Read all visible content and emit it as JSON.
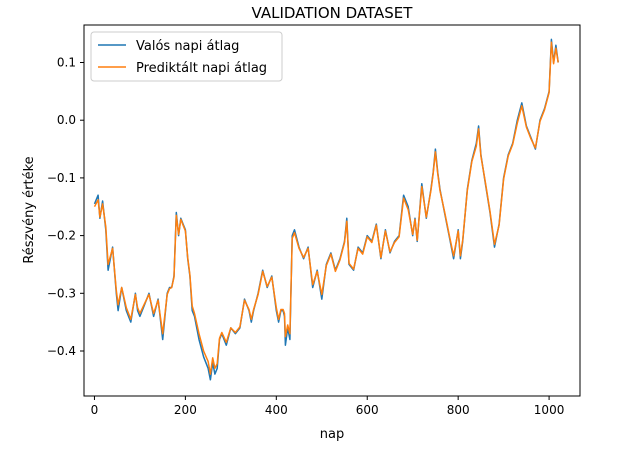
{
  "chart_data": {
    "type": "line",
    "title": "VALIDATION DATASET",
    "xlabel": "nap",
    "ylabel": "Részvény értéke",
    "xlim": [
      -23,
      1068
    ],
    "ylim": [
      -0.478,
      0.165
    ],
    "xticks": [
      0,
      200,
      400,
      600,
      800,
      1000
    ],
    "yticks": [
      -0.4,
      -0.3,
      -0.2,
      -0.1,
      0.0,
      0.1
    ],
    "ytick_labels": [
      "−0.4",
      "−0.3",
      "−0.2",
      "−0.1",
      "0.0",
      "0.1"
    ],
    "grid": false,
    "legend_position": "top-left",
    "series": [
      {
        "name": "Valós napi átlag",
        "color": "#1f77b4",
        "x": [
          0,
          8,
          12,
          18,
          25,
          30,
          40,
          48,
          52,
          60,
          70,
          80,
          90,
          95,
          100,
          110,
          120,
          130,
          140,
          150,
          160,
          165,
          170,
          175,
          180,
          185,
          190,
          195,
          200,
          205,
          210,
          215,
          220,
          230,
          240,
          250,
          255,
          260,
          265,
          270,
          275,
          280,
          290,
          300,
          310,
          320,
          330,
          340,
          345,
          350,
          360,
          370,
          380,
          390,
          400,
          405,
          410,
          415,
          418,
          420,
          425,
          430,
          435,
          440,
          450,
          460,
          470,
          480,
          490,
          500,
          510,
          520,
          530,
          540,
          550,
          555,
          560,
          570,
          580,
          590,
          600,
          610,
          620,
          630,
          640,
          650,
          660,
          670,
          680,
          690,
          700,
          705,
          710,
          720,
          730,
          740,
          745,
          750,
          755,
          760,
          770,
          780,
          790,
          800,
          805,
          810,
          820,
          830,
          840,
          845,
          850,
          860,
          870,
          880,
          890,
          900,
          910,
          920,
          930,
          940,
          950,
          960,
          970,
          980,
          990,
          1000,
          1005,
          1010,
          1015,
          1020
        ],
        "values": [
          -0.145,
          -0.13,
          -0.17,
          -0.14,
          -0.19,
          -0.26,
          -0.22,
          -0.3,
          -0.33,
          -0.29,
          -0.33,
          -0.35,
          -0.3,
          -0.33,
          -0.34,
          -0.32,
          -0.3,
          -0.34,
          -0.31,
          -0.38,
          -0.3,
          -0.29,
          -0.29,
          -0.27,
          -0.16,
          -0.2,
          -0.17,
          -0.18,
          -0.19,
          -0.24,
          -0.27,
          -0.33,
          -0.34,
          -0.38,
          -0.41,
          -0.43,
          -0.45,
          -0.42,
          -0.44,
          -0.43,
          -0.38,
          -0.37,
          -0.39,
          -0.36,
          -0.37,
          -0.36,
          -0.31,
          -0.33,
          -0.35,
          -0.33,
          -0.3,
          -0.26,
          -0.29,
          -0.27,
          -0.33,
          -0.35,
          -0.33,
          -0.33,
          -0.34,
          -0.39,
          -0.36,
          -0.38,
          -0.2,
          -0.19,
          -0.22,
          -0.24,
          -0.22,
          -0.29,
          -0.26,
          -0.31,
          -0.25,
          -0.23,
          -0.26,
          -0.24,
          -0.21,
          -0.17,
          -0.25,
          -0.26,
          -0.22,
          -0.23,
          -0.2,
          -0.21,
          -0.18,
          -0.24,
          -0.19,
          -0.23,
          -0.21,
          -0.2,
          -0.13,
          -0.15,
          -0.2,
          -0.17,
          -0.21,
          -0.11,
          -0.17,
          -0.12,
          -0.09,
          -0.05,
          -0.09,
          -0.12,
          -0.16,
          -0.2,
          -0.24,
          -0.19,
          -0.24,
          -0.21,
          -0.12,
          -0.07,
          -0.04,
          -0.01,
          -0.06,
          -0.11,
          -0.16,
          -0.22,
          -0.18,
          -0.1,
          -0.06,
          -0.04,
          0.0,
          0.03,
          -0.01,
          -0.03,
          -0.05,
          0.0,
          0.02,
          0.05,
          0.14,
          0.1,
          0.13,
          0.1
        ]
      },
      {
        "name": "Prediktált napi átlag",
        "color": "#ff7f0e",
        "x": [
          0,
          8,
          12,
          18,
          25,
          30,
          40,
          48,
          52,
          60,
          70,
          80,
          90,
          95,
          100,
          110,
          120,
          130,
          140,
          150,
          160,
          165,
          170,
          175,
          180,
          185,
          190,
          195,
          200,
          205,
          210,
          215,
          220,
          230,
          240,
          250,
          255,
          260,
          265,
          270,
          275,
          280,
          290,
          300,
          310,
          320,
          330,
          340,
          345,
          350,
          360,
          370,
          380,
          390,
          400,
          405,
          410,
          415,
          418,
          420,
          425,
          430,
          435,
          440,
          450,
          460,
          470,
          480,
          490,
          500,
          510,
          520,
          530,
          540,
          550,
          555,
          560,
          570,
          580,
          590,
          600,
          610,
          620,
          630,
          640,
          650,
          660,
          670,
          680,
          690,
          700,
          705,
          710,
          720,
          730,
          740,
          745,
          750,
          755,
          760,
          770,
          780,
          790,
          800,
          805,
          810,
          820,
          830,
          840,
          845,
          850,
          860,
          870,
          880,
          890,
          900,
          910,
          920,
          930,
          940,
          950,
          960,
          970,
          980,
          990,
          1000,
          1005,
          1010,
          1015,
          1020
        ],
        "values": [
          -0.15,
          -0.138,
          -0.168,
          -0.145,
          -0.185,
          -0.25,
          -0.222,
          -0.295,
          -0.32,
          -0.29,
          -0.325,
          -0.345,
          -0.302,
          -0.325,
          -0.335,
          -0.318,
          -0.302,
          -0.335,
          -0.312,
          -0.37,
          -0.302,
          -0.292,
          -0.29,
          -0.272,
          -0.165,
          -0.198,
          -0.172,
          -0.182,
          -0.192,
          -0.238,
          -0.268,
          -0.322,
          -0.335,
          -0.37,
          -0.4,
          -0.418,
          -0.44,
          -0.412,
          -0.43,
          -0.422,
          -0.378,
          -0.368,
          -0.385,
          -0.36,
          -0.368,
          -0.358,
          -0.312,
          -0.328,
          -0.345,
          -0.328,
          -0.302,
          -0.262,
          -0.288,
          -0.272,
          -0.325,
          -0.345,
          -0.328,
          -0.328,
          -0.335,
          -0.375,
          -0.355,
          -0.37,
          -0.205,
          -0.195,
          -0.222,
          -0.238,
          -0.222,
          -0.285,
          -0.262,
          -0.302,
          -0.252,
          -0.232,
          -0.262,
          -0.242,
          -0.212,
          -0.175,
          -0.248,
          -0.258,
          -0.222,
          -0.232,
          -0.202,
          -0.212,
          -0.182,
          -0.238,
          -0.192,
          -0.228,
          -0.212,
          -0.202,
          -0.135,
          -0.155,
          -0.198,
          -0.172,
          -0.208,
          -0.115,
          -0.168,
          -0.122,
          -0.092,
          -0.055,
          -0.092,
          -0.122,
          -0.158,
          -0.198,
          -0.235,
          -0.192,
          -0.235,
          -0.208,
          -0.122,
          -0.072,
          -0.045,
          -0.015,
          -0.062,
          -0.108,
          -0.158,
          -0.215,
          -0.182,
          -0.102,
          -0.062,
          -0.042,
          -0.005,
          0.025,
          -0.012,
          -0.032,
          -0.048,
          -0.002,
          0.018,
          0.048,
          0.135,
          0.098,
          0.125,
          0.1
        ]
      }
    ]
  }
}
